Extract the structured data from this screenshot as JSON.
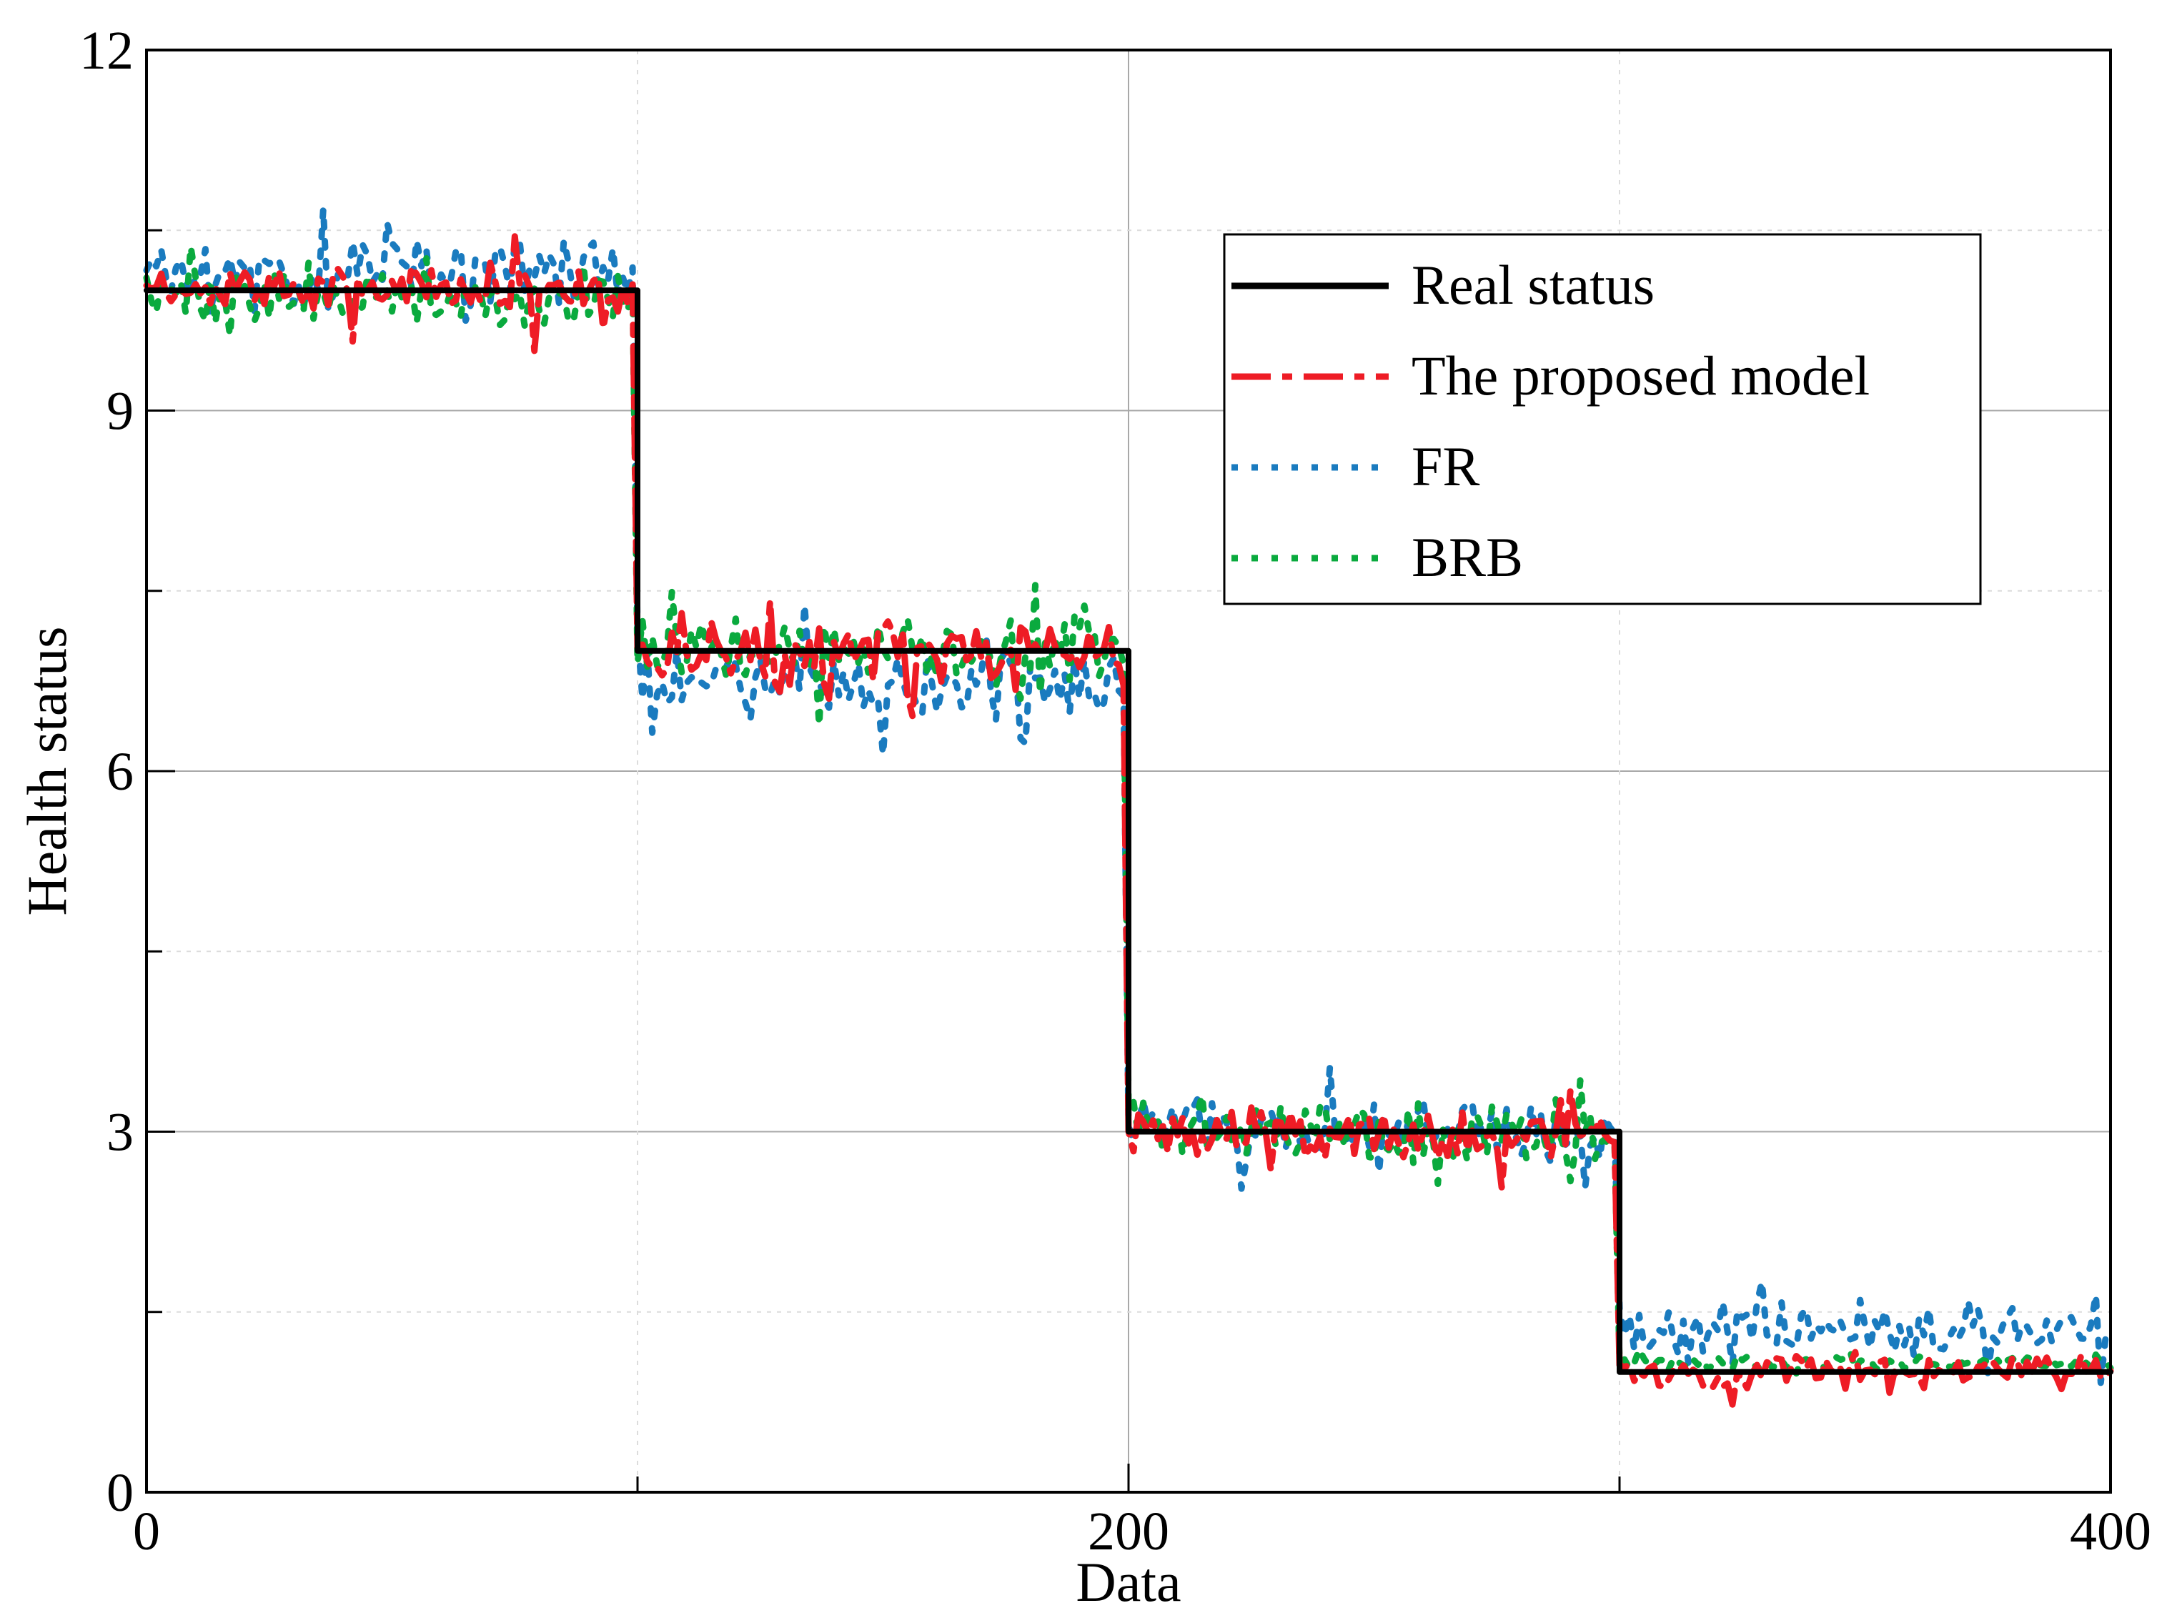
{
  "chart_data": {
    "type": "line",
    "title": "",
    "xlabel": "Data",
    "ylabel": "Health status",
    "xlim": [
      0,
      400
    ],
    "ylim": [
      0,
      12
    ],
    "xticks": [
      0,
      200,
      400
    ],
    "xtick_labels": [
      "0",
      "200",
      "400"
    ],
    "yticks": [
      0,
      3,
      6,
      9,
      12
    ],
    "ytick_labels": [
      "0",
      "3",
      "6",
      "9",
      "12"
    ],
    "grid": true,
    "legend_position": "top-right",
    "segments": [
      {
        "start": 0,
        "end": 100,
        "level": 10,
        "fr_bias": 0.15,
        "fr_amp": 0.45,
        "brb_bias": -0.05,
        "brb_amp": 0.3,
        "prop_bias": 0.0,
        "prop_amp": 0.3
      },
      {
        "start": 100,
        "end": 200,
        "level": 7,
        "fr_bias": -0.3,
        "fr_amp": 0.45,
        "brb_bias": 0.0,
        "brb_amp": 0.4,
        "prop_bias": 0.0,
        "prop_amp": 0.4
      },
      {
        "start": 200,
        "end": 300,
        "level": 3,
        "fr_bias": 0.0,
        "fr_amp": 0.35,
        "brb_bias": 0.0,
        "brb_amp": 0.4,
        "prop_bias": -0.05,
        "prop_amp": 0.3
      },
      {
        "start": 300,
        "end": 400,
        "level": 1,
        "fr_bias": 0.35,
        "fr_amp": 0.35,
        "brb_bias": 0.08,
        "brb_amp": 0.08,
        "prop_bias": 0.0,
        "prop_amp": 0.2
      }
    ],
    "series": [
      {
        "name": "Real status",
        "color": "#000000",
        "style": "solid"
      },
      {
        "name": "The proposed model",
        "color": "#ee1c25",
        "style": "dash-dot"
      },
      {
        "name": "FR",
        "color": "#1a7bbf",
        "style": "dotted"
      },
      {
        "name": "BRB",
        "color": "#0aaa3e",
        "style": "dotted"
      }
    ]
  }
}
